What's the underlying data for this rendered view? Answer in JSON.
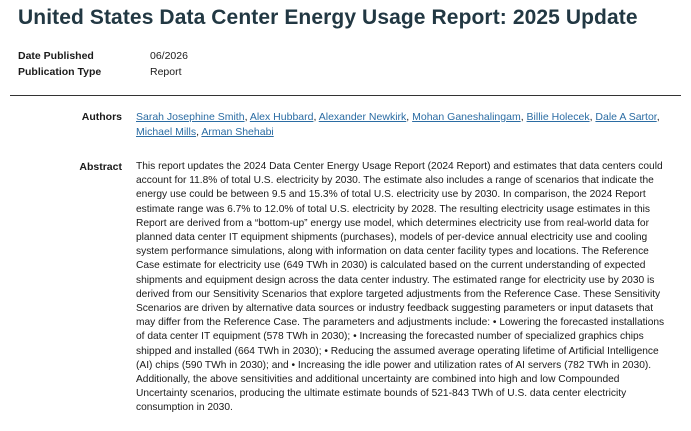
{
  "page": {
    "title": "United States Data Center Energy Usage Report: 2025 Update"
  },
  "meta": {
    "date_label": "Date Published",
    "date_value": "06/2026",
    "type_label": "Publication Type",
    "type_value": "Report"
  },
  "authors": {
    "label": "Authors",
    "items": [
      "Sarah Josephine Smith",
      "Alex Hubbard",
      "Alexander Newkirk",
      "Mohan Ganeshalingam",
      "Billie Holecek",
      "Dale A Sartor",
      "Michael Mills",
      "Arman Shehabi"
    ]
  },
  "abstract": {
    "label": "Abstract",
    "text": "This report updates the 2024 Data Center Energy Usage Report (2024 Report) and estimates that data centers could account for 11.8% of total U.S. electricity by 2030. The estimate also includes a range of scenarios that indicate the energy use could be between 9.5 and 15.3% of total U.S. electricity use by 2030. In comparison, the 2024 Report estimate range was 6.7% to 12.0% of total U.S. electricity by 2028. The resulting electricity usage estimates in this Report are derived from a “bottom-up” energy use model, which determines electricity use from real-world data for planned data center IT equipment shipments (purchases), models of per-device annual electricity use and cooling system performance simulations, along with information on data center facility types and locations. The Reference Case estimate for electricity use (649 TWh in 2030) is calculated based on the current understanding of expected shipments and equipment design across the data center industry. The estimated range for electricity use by 2030 is derived from our Sensitivity Scenarios that explore targeted adjustments from the Reference Case. These Sensitivity Scenarios are driven by alternative data sources or industry feedback suggesting parameters or input datasets that may differ from the Reference Case. The parameters and adjustments include: • Lowering the forecasted installations of data center IT equipment (578 TWh in 2030); • Increasing the forecasted number of specialized graphics chips shipped and installed (664 TWh in 2030); • Reducing the assumed average operating lifetime of Artificial Intelligence (AI) chips (590 TWh in 2030); and • Increasing the idle power and utilization rates of AI servers (782 TWh in 2030). Additionally, the above sensitivities and additional uncertainty are combined into high and low Compounded Uncertainty scenarios, producing the ultimate estimate bounds of 521-843 TWh of U.S. data center electricity consumption in 2030."
  },
  "colors": {
    "title": "#223843",
    "link": "#2b6ca3",
    "divider": "#333333"
  }
}
